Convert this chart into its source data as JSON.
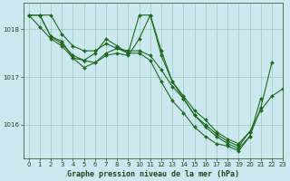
{
  "title": "Graphe pression niveau de la mer (hPa)",
  "background_color": "#cce8f0",
  "grid_color": "#99ccbb",
  "line_color": "#1a6b1a",
  "marker_color": "#1a6b1a",
  "xlim": [
    -0.5,
    23
  ],
  "ylim": [
    1015.3,
    1018.55
  ],
  "yticks": [
    1016,
    1017,
    1018
  ],
  "xticks": [
    0,
    1,
    2,
    3,
    4,
    5,
    6,
    7,
    8,
    9,
    10,
    11,
    12,
    13,
    14,
    15,
    16,
    17,
    18,
    19,
    20,
    21,
    22,
    23
  ],
  "series": [
    {
      "x": [
        0,
        1,
        2,
        3,
        4,
        5,
        6,
        7,
        8,
        9,
        10,
        11,
        12,
        13,
        14,
        15,
        16,
        17,
        18,
        19,
        20,
        21,
        22,
        23
      ],
      "y": [
        1018.3,
        1018.3,
        1018.3,
        1017.9,
        1017.65,
        1017.55,
        1017.55,
        1017.7,
        1017.6,
        1017.55,
        1017.55,
        1017.45,
        1017.15,
        1016.8,
        1016.55,
        1016.2,
        1016.0,
        1015.8,
        1015.65,
        1015.55,
        1015.85,
        1016.3,
        1016.6,
        1016.75
      ]
    },
    {
      "x": [
        0,
        1,
        2,
        3,
        4,
        5,
        6,
        7,
        8,
        9,
        10,
        11,
        12,
        13,
        14,
        15,
        16,
        17,
        18,
        19,
        20,
        21,
        22
      ],
      "y": [
        1018.3,
        1018.3,
        1017.85,
        1017.75,
        1017.4,
        1017.35,
        1017.5,
        1017.8,
        1017.65,
        1017.5,
        1017.5,
        1017.35,
        1016.9,
        1016.5,
        1016.25,
        1015.95,
        1015.75,
        1015.6,
        1015.55,
        1015.45,
        1015.75,
        1016.35,
        1017.3
      ]
    },
    {
      "x": [
        0,
        1,
        2,
        3,
        4,
        5,
        6,
        7,
        8,
        9,
        10,
        11,
        12,
        13,
        14,
        15,
        16,
        17,
        18,
        19,
        20
      ],
      "y": [
        1018.3,
        1018.05,
        1017.8,
        1017.65,
        1017.4,
        1017.2,
        1017.3,
        1017.45,
        1017.5,
        1017.45,
        1017.8,
        1018.3,
        1017.45,
        1016.9,
        1016.6,
        1016.3,
        1016.1,
        1015.85,
        1015.7,
        1015.6,
        1015.85
      ]
    },
    {
      "x": [
        0,
        1,
        2,
        3,
        4,
        5,
        6,
        7,
        8,
        9,
        10,
        11,
        12,
        13,
        14,
        15,
        16,
        17,
        18,
        19,
        20,
        21
      ],
      "y": [
        1018.3,
        1018.3,
        1017.85,
        1017.7,
        1017.45,
        1017.35,
        1017.3,
        1017.5,
        1017.6,
        1017.5,
        1018.3,
        1018.3,
        1017.55,
        1016.9,
        1016.55,
        1016.2,
        1015.95,
        1015.75,
        1015.6,
        1015.5,
        1015.75,
        1016.55
      ]
    }
  ]
}
